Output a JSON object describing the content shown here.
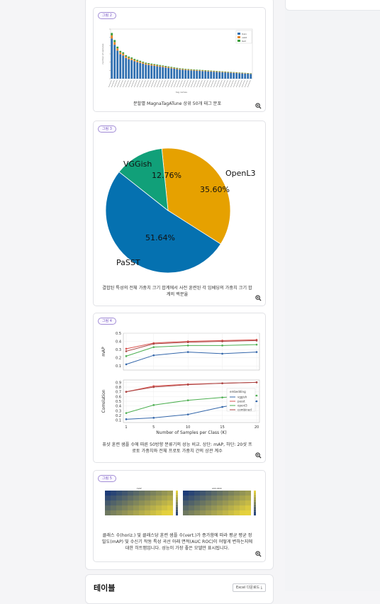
{
  "figures": [
    {
      "badge": "그림 2",
      "caption": "분할별 MagnaTagATune 상위 50개 태그 분포",
      "chart_data": {
        "type": "bar",
        "title": "",
        "xlabel": "tag names",
        "ylabel": "number of samples",
        "legend": [
          "train",
          "valid",
          "test"
        ],
        "series": [
          {
            "name": "train",
            "values": [
              4850,
              4100,
              3400,
              2950,
              2800,
              2500,
              2350,
              2250,
              2100,
              2000,
              1900,
              1800,
              1700,
              1650,
              1600,
              1550,
              1500,
              1450,
              1400,
              1350,
              1300,
              1250,
              1200,
              1150,
              1100,
              1080,
              1050,
              1020,
              1000,
              980,
              960,
              940,
              920,
              900,
              880,
              860,
              840,
              820,
              800,
              780,
              760,
              740,
              720,
              700,
              680,
              660,
              640,
              620,
              600,
              580
            ]
          }
        ],
        "ylim": [
          0,
          6000
        ]
      }
    },
    {
      "badge": "그림 3",
      "caption": "결합된 특성의 전체 가중치 크기 합계에서 사전 훈련된 각 임베딩의 가중치 크기 합계의 백분율",
      "chart_data": {
        "type": "pie",
        "slices": [
          {
            "label": "OpenL3",
            "value": 35.6,
            "text": "35.60%",
            "color": "#e6a100"
          },
          {
            "label": "PaSST",
            "value": 51.64,
            "text": "51.64%",
            "color": "#0571b0"
          },
          {
            "label": "VGGish",
            "value": 12.76,
            "text": "12.76%",
            "color": "#11a079"
          }
        ]
      }
    },
    {
      "badge": "그림 4",
      "caption": "퓨샷 훈련 샘플 수에 따른 50방향 분류기의 성능 비교. 상단: mAP, 하단: 20샷 프로토 가중치와 전체 프로토 가중치 간의 상관 계수",
      "chart_data": [
        {
          "type": "line",
          "ylabel": "mAP",
          "x": [
            1,
            5,
            10,
            15,
            20
          ],
          "yticks": [
            "0.1",
            "0.2",
            "0.3",
            "0.4",
            "0.5"
          ],
          "ylim": [
            0.05,
            0.5
          ],
          "series": [
            {
              "name": "vggish",
              "color": "#3366aa",
              "values": [
                0.12,
                0.23,
                0.27,
                0.25,
                0.27
              ]
            },
            {
              "name": "passt",
              "color": "#d9534f",
              "values": [
                0.31,
                0.38,
                0.4,
                0.41,
                0.42
              ]
            },
            {
              "name": "openl3",
              "color": "#4caf50",
              "values": [
                0.22,
                0.33,
                0.35,
                0.35,
                0.36
              ]
            },
            {
              "name": "combined",
              "color": "#a94442",
              "values": [
                0.28,
                0.37,
                0.39,
                0.4,
                0.41
              ]
            }
          ]
        },
        {
          "type": "line",
          "xlabel": "Number of Samples per Class (K)",
          "ylabel": "Correlation",
          "x": [
            1,
            5,
            10,
            15,
            20
          ],
          "xticks": [
            "1",
            "5",
            "10",
            "15",
            "20"
          ],
          "yticks": [
            "0.1",
            "0.2",
            "0.3",
            "0.4",
            "0.5",
            "0.6",
            "0.7",
            "0.8",
            "0.9"
          ],
          "ylim": [
            0.05,
            0.95
          ],
          "legend_title": "embedding",
          "series": [
            {
              "name": "vggish",
              "color": "#3366aa",
              "values": [
                0.12,
                0.15,
                0.22,
                0.38,
                0.5
              ]
            },
            {
              "name": "passt",
              "color": "#d9534f",
              "values": [
                0.7,
                0.82,
                0.86,
                0.88,
                0.9
              ]
            },
            {
              "name": "openl3",
              "color": "#4caf50",
              "values": [
                0.25,
                0.42,
                0.52,
                0.58,
                0.62
              ]
            },
            {
              "name": "combined",
              "color": "#a94442",
              "values": [
                0.7,
                0.8,
                0.85,
                0.88,
                0.9
              ]
            }
          ]
        }
      ]
    },
    {
      "badge": "그림 5",
      "caption": "클래스 수(horiz.) 및 클래스당 훈련 샘플 수(vert.)가 증가함에 따라 평균 평균 정밀도(mAP) 및 수신기 작동 특성 곡선 아래 면적(AUC ROC)이 어떻게 변하는지에 대한 히트맵입니다. 성능이 가장 좋은 모델만 표시됩니다.",
      "chart_data": {
        "type": "heatmap",
        "panels": [
          "mAP",
          "AUC-ROC"
        ]
      }
    }
  ],
  "tables": {
    "title": "테이블",
    "excel_button": "Excel 다운로드"
  }
}
